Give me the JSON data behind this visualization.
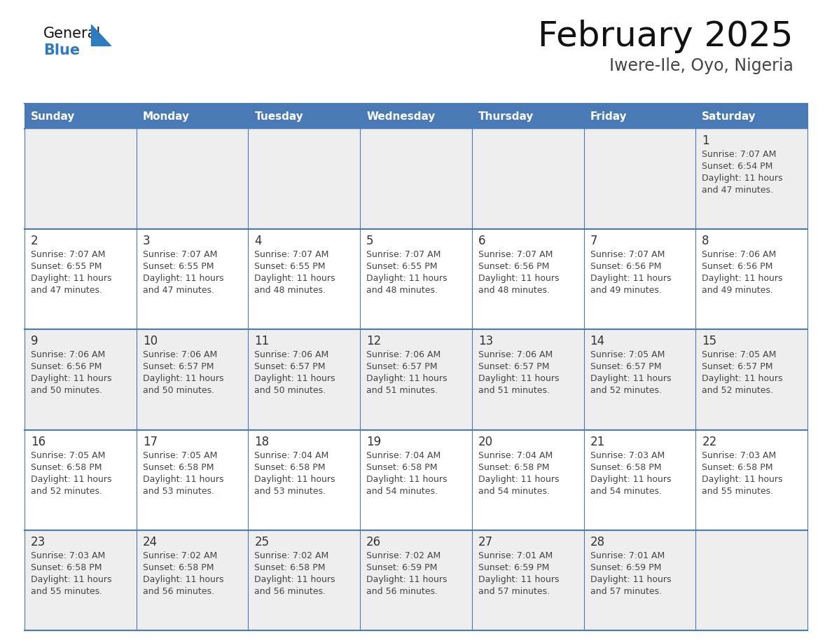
{
  "title": "February 2025",
  "subtitle": "Iwere-Ile, Oyo, Nigeria",
  "days_of_week": [
    "Sunday",
    "Monday",
    "Tuesday",
    "Wednesday",
    "Thursday",
    "Friday",
    "Saturday"
  ],
  "header_bg": "#4a7ab5",
  "header_text": "#ffffff",
  "cell_bg_gray": "#eeeeee",
  "cell_bg_white": "#ffffff",
  "cell_border": "#4a7ab5",
  "day_number_color": "#333333",
  "text_color": "#444444",
  "title_color": "#111111",
  "subtitle_color": "#444444",
  "logo_general_color": "#111111",
  "logo_blue_color": "#2e7bbf",
  "calendar_data": [
    [
      null,
      null,
      null,
      null,
      null,
      null,
      {
        "day": 1,
        "sunrise": "7:07 AM",
        "sunset": "6:54 PM",
        "daylight_line1": "Daylight: 11 hours",
        "daylight_line2": "and 47 minutes."
      }
    ],
    [
      {
        "day": 2,
        "sunrise": "7:07 AM",
        "sunset": "6:55 PM",
        "daylight_line1": "Daylight: 11 hours",
        "daylight_line2": "and 47 minutes."
      },
      {
        "day": 3,
        "sunrise": "7:07 AM",
        "sunset": "6:55 PM",
        "daylight_line1": "Daylight: 11 hours",
        "daylight_line2": "and 47 minutes."
      },
      {
        "day": 4,
        "sunrise": "7:07 AM",
        "sunset": "6:55 PM",
        "daylight_line1": "Daylight: 11 hours",
        "daylight_line2": "and 48 minutes."
      },
      {
        "day": 5,
        "sunrise": "7:07 AM",
        "sunset": "6:55 PM",
        "daylight_line1": "Daylight: 11 hours",
        "daylight_line2": "and 48 minutes."
      },
      {
        "day": 6,
        "sunrise": "7:07 AM",
        "sunset": "6:56 PM",
        "daylight_line1": "Daylight: 11 hours",
        "daylight_line2": "and 48 minutes."
      },
      {
        "day": 7,
        "sunrise": "7:07 AM",
        "sunset": "6:56 PM",
        "daylight_line1": "Daylight: 11 hours",
        "daylight_line2": "and 49 minutes."
      },
      {
        "day": 8,
        "sunrise": "7:06 AM",
        "sunset": "6:56 PM",
        "daylight_line1": "Daylight: 11 hours",
        "daylight_line2": "and 49 minutes."
      }
    ],
    [
      {
        "day": 9,
        "sunrise": "7:06 AM",
        "sunset": "6:56 PM",
        "daylight_line1": "Daylight: 11 hours",
        "daylight_line2": "and 50 minutes."
      },
      {
        "day": 10,
        "sunrise": "7:06 AM",
        "sunset": "6:57 PM",
        "daylight_line1": "Daylight: 11 hours",
        "daylight_line2": "and 50 minutes."
      },
      {
        "day": 11,
        "sunrise": "7:06 AM",
        "sunset": "6:57 PM",
        "daylight_line1": "Daylight: 11 hours",
        "daylight_line2": "and 50 minutes."
      },
      {
        "day": 12,
        "sunrise": "7:06 AM",
        "sunset": "6:57 PM",
        "daylight_line1": "Daylight: 11 hours",
        "daylight_line2": "and 51 minutes."
      },
      {
        "day": 13,
        "sunrise": "7:06 AM",
        "sunset": "6:57 PM",
        "daylight_line1": "Daylight: 11 hours",
        "daylight_line2": "and 51 minutes."
      },
      {
        "day": 14,
        "sunrise": "7:05 AM",
        "sunset": "6:57 PM",
        "daylight_line1": "Daylight: 11 hours",
        "daylight_line2": "and 52 minutes."
      },
      {
        "day": 15,
        "sunrise": "7:05 AM",
        "sunset": "6:57 PM",
        "daylight_line1": "Daylight: 11 hours",
        "daylight_line2": "and 52 minutes."
      }
    ],
    [
      {
        "day": 16,
        "sunrise": "7:05 AM",
        "sunset": "6:58 PM",
        "daylight_line1": "Daylight: 11 hours",
        "daylight_line2": "and 52 minutes."
      },
      {
        "day": 17,
        "sunrise": "7:05 AM",
        "sunset": "6:58 PM",
        "daylight_line1": "Daylight: 11 hours",
        "daylight_line2": "and 53 minutes."
      },
      {
        "day": 18,
        "sunrise": "7:04 AM",
        "sunset": "6:58 PM",
        "daylight_line1": "Daylight: 11 hours",
        "daylight_line2": "and 53 minutes."
      },
      {
        "day": 19,
        "sunrise": "7:04 AM",
        "sunset": "6:58 PM",
        "daylight_line1": "Daylight: 11 hours",
        "daylight_line2": "and 54 minutes."
      },
      {
        "day": 20,
        "sunrise": "7:04 AM",
        "sunset": "6:58 PM",
        "daylight_line1": "Daylight: 11 hours",
        "daylight_line2": "and 54 minutes."
      },
      {
        "day": 21,
        "sunrise": "7:03 AM",
        "sunset": "6:58 PM",
        "daylight_line1": "Daylight: 11 hours",
        "daylight_line2": "and 54 minutes."
      },
      {
        "day": 22,
        "sunrise": "7:03 AM",
        "sunset": "6:58 PM",
        "daylight_line1": "Daylight: 11 hours",
        "daylight_line2": "and 55 minutes."
      }
    ],
    [
      {
        "day": 23,
        "sunrise": "7:03 AM",
        "sunset": "6:58 PM",
        "daylight_line1": "Daylight: 11 hours",
        "daylight_line2": "and 55 minutes."
      },
      {
        "day": 24,
        "sunrise": "7:02 AM",
        "sunset": "6:58 PM",
        "daylight_line1": "Daylight: 11 hours",
        "daylight_line2": "and 56 minutes."
      },
      {
        "day": 25,
        "sunrise": "7:02 AM",
        "sunset": "6:58 PM",
        "daylight_line1": "Daylight: 11 hours",
        "daylight_line2": "and 56 minutes."
      },
      {
        "day": 26,
        "sunrise": "7:02 AM",
        "sunset": "6:59 PM",
        "daylight_line1": "Daylight: 11 hours",
        "daylight_line2": "and 56 minutes."
      },
      {
        "day": 27,
        "sunrise": "7:01 AM",
        "sunset": "6:59 PM",
        "daylight_line1": "Daylight: 11 hours",
        "daylight_line2": "and 57 minutes."
      },
      {
        "day": 28,
        "sunrise": "7:01 AM",
        "sunset": "6:59 PM",
        "daylight_line1": "Daylight: 11 hours",
        "daylight_line2": "and 57 minutes."
      },
      null
    ]
  ]
}
